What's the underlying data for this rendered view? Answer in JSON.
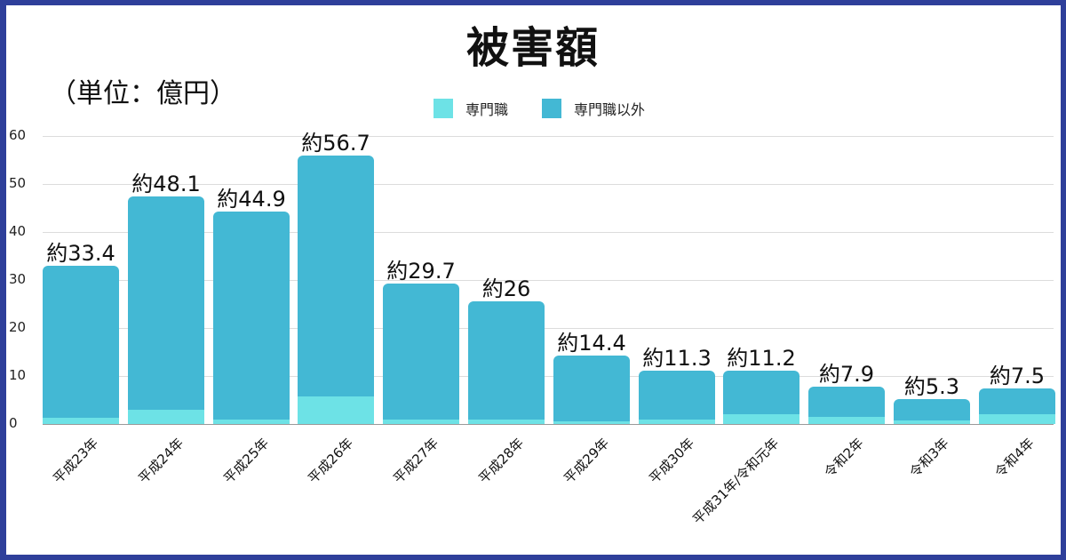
{
  "title": "被害額",
  "unit_label": "（単位：億円）",
  "legend": [
    {
      "label": "専門職",
      "color": "#6de2e6"
    },
    {
      "label": "専門職以外",
      "color": "#43b8d4"
    }
  ],
  "colors": {
    "border": "#2e3f9a",
    "specialist": "#6de2e6",
    "non_specialist": "#43b8d4",
    "grid": "#dcdcdc"
  },
  "y_ticks": [
    "0",
    "10",
    "20",
    "30",
    "40",
    "50",
    "60"
  ],
  "bar_labels": [
    "約33.4",
    "約48.1",
    "約44.9",
    "約56.7",
    "約29.7",
    "約26",
    "約14.4",
    "約11.3",
    "約11.2",
    "約7.9",
    "約5.3",
    "約7.5"
  ],
  "chart_data": {
    "type": "bar",
    "stacked": true,
    "title": "被害額",
    "ylabel": "（単位：億円）",
    "xlabel": "",
    "ylim": [
      0,
      60
    ],
    "grid": true,
    "legend_position": "top",
    "categories": [
      "平成23年",
      "平成24年",
      "平成25年",
      "平成26年",
      "平成27年",
      "平成28年",
      "平成29年",
      "平成30年",
      "平成31年/令和元年",
      "令和2年",
      "令和3年",
      "令和4年"
    ],
    "totals": [
      33.4,
      48.1,
      44.9,
      56.7,
      29.7,
      26,
      14.4,
      11.3,
      11.2,
      7.9,
      5.3,
      7.5
    ],
    "series": [
      {
        "name": "専門職",
        "values": [
          1.3,
          3.0,
          1.0,
          5.7,
          1.0,
          1.0,
          0.5,
          1.0,
          2.0,
          1.5,
          0.7,
          2.1
        ]
      },
      {
        "name": "専門職以外",
        "values": [
          32.1,
          45.1,
          43.9,
          51.0,
          28.7,
          25.0,
          13.9,
          10.3,
          9.2,
          6.4,
          4.6,
          5.4
        ]
      }
    ]
  }
}
